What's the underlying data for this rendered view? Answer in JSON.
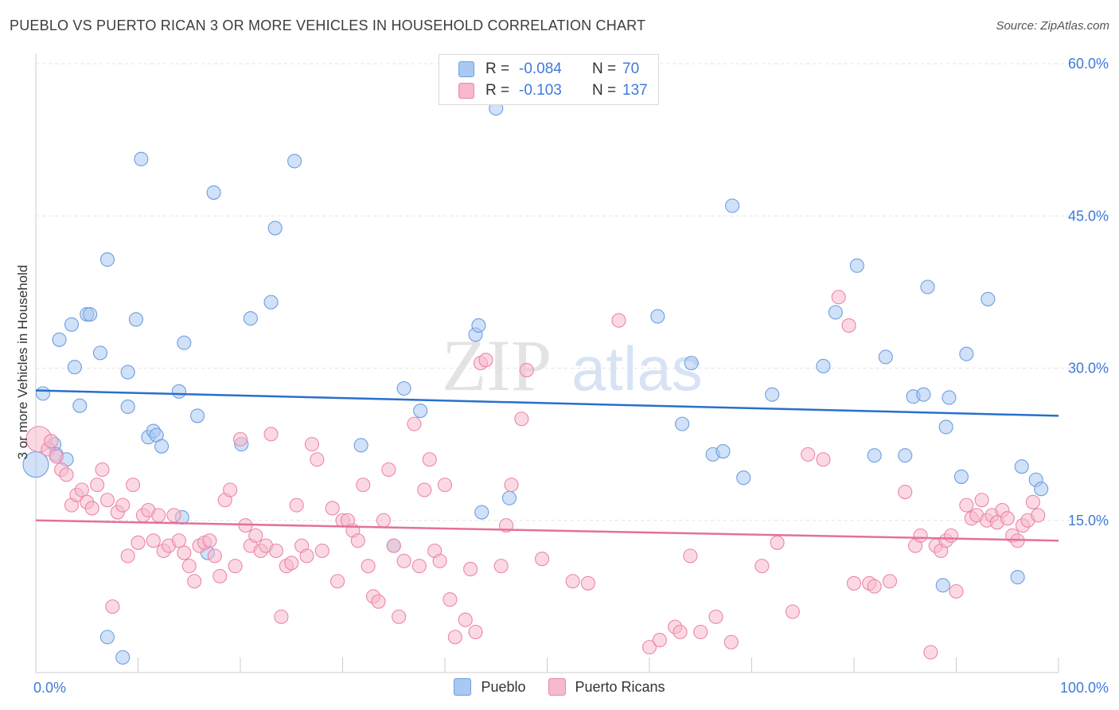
{
  "header": {
    "title": "PUEBLO VS PUERTO RICAN 3 OR MORE VEHICLES IN HOUSEHOLD CORRELATION CHART",
    "source": "Source: ZipAtlas.com"
  },
  "watermark": {
    "zip": "ZIP",
    "atlas": "atlas"
  },
  "legend": {
    "rows": [
      {
        "r_label": "R =",
        "r_value": "-0.084",
        "n_label": "N =",
        "n_value": "70",
        "color": "#a9c8f2",
        "border": "#6e9fe0"
      },
      {
        "r_label": "R =",
        "r_value": "-0.103",
        "n_label": "N =",
        "n_value": "137",
        "color": "#f7b9cc",
        "border": "#ec86a6"
      }
    ]
  },
  "bottom_legend": [
    {
      "label": "Pueblo",
      "color": "#a9c8f2",
      "border": "#6e9fe0"
    },
    {
      "label": "Puerto Ricans",
      "color": "#f7b9cc",
      "border": "#ec86a6"
    }
  ],
  "chart_data": {
    "type": "scatter",
    "xlabel": "",
    "ylabel": "3 or more Vehicles in Household",
    "xlim": [
      0,
      100
    ],
    "ylim": [
      0,
      60
    ],
    "x_tick_labels": [
      "0.0%",
      "100.0%"
    ],
    "y_ticks": [
      15,
      30,
      45,
      60
    ],
    "y_tick_labels": [
      "15.0%",
      "30.0%",
      "45.0%",
      "60.0%"
    ],
    "grid": true,
    "legend_position": "top-center",
    "series": [
      {
        "name": "Pueblo",
        "color": "#6e9fe0",
        "fill": "#a9c8f2",
        "trend": [
          [
            0,
            27.8
          ],
          [
            100,
            25.3
          ]
        ],
        "points": [
          [
            0.7,
            27.5
          ],
          [
            1.8,
            22.5
          ],
          [
            2.0,
            21.5
          ],
          [
            3.0,
            21.0
          ],
          [
            2.3,
            32.8
          ],
          [
            3.5,
            34.3
          ],
          [
            3.8,
            30.1
          ],
          [
            4.3,
            26.3
          ],
          [
            5.0,
            35.3
          ],
          [
            5.3,
            35.3
          ],
          [
            6.3,
            31.5
          ],
          [
            7.0,
            40.7
          ],
          [
            9.0,
            26.2
          ],
          [
            9.0,
            29.6
          ],
          [
            9.8,
            34.8
          ],
          [
            10.3,
            50.6
          ],
          [
            11.0,
            23.2
          ],
          [
            11.5,
            23.8
          ],
          [
            11.8,
            23.4
          ],
          [
            12.3,
            22.3
          ],
          [
            14.0,
            27.7
          ],
          [
            14.3,
            15.3
          ],
          [
            14.5,
            32.5
          ],
          [
            15.8,
            25.3
          ],
          [
            16.8,
            11.8
          ],
          [
            17.4,
            47.3
          ],
          [
            20.1,
            22.5
          ],
          [
            21.0,
            34.9
          ],
          [
            23.0,
            36.5
          ],
          [
            23.4,
            43.8
          ],
          [
            25.3,
            50.4
          ],
          [
            31.8,
            22.4
          ],
          [
            35.0,
            12.5
          ],
          [
            36.0,
            28.0
          ],
          [
            37.6,
            25.8
          ],
          [
            43.0,
            33.3
          ],
          [
            43.3,
            34.2
          ],
          [
            43.6,
            15.8
          ],
          [
            45.0,
            55.6
          ],
          [
            46.3,
            17.2
          ],
          [
            60.8,
            35.1
          ],
          [
            63.2,
            24.5
          ],
          [
            64.1,
            30.5
          ],
          [
            66.2,
            21.5
          ],
          [
            67.2,
            21.8
          ],
          [
            68.1,
            46.0
          ],
          [
            69.2,
            19.2
          ],
          [
            72.0,
            27.4
          ],
          [
            77.0,
            30.2
          ],
          [
            78.2,
            35.5
          ],
          [
            80.3,
            40.1
          ],
          [
            82.0,
            21.4
          ],
          [
            83.1,
            31.1
          ],
          [
            85.0,
            21.4
          ],
          [
            85.8,
            27.2
          ],
          [
            86.8,
            27.4
          ],
          [
            87.2,
            38.0
          ],
          [
            88.7,
            8.6
          ],
          [
            89.0,
            24.2
          ],
          [
            89.3,
            27.1
          ],
          [
            90.5,
            19.3
          ],
          [
            91.0,
            31.4
          ],
          [
            93.1,
            36.8
          ],
          [
            96.0,
            9.4
          ],
          [
            96.4,
            20.3
          ],
          [
            97.8,
            19.0
          ],
          [
            98.3,
            18.1
          ],
          [
            0.0,
            20.5
          ],
          [
            7.0,
            3.5
          ],
          [
            8.5,
            1.5
          ]
        ]
      },
      {
        "name": "Puerto Ricans",
        "color": "#ec86a6",
        "fill": "#f7b9cc",
        "trend": [
          [
            0,
            15.0
          ],
          [
            100,
            13.0
          ]
        ],
        "points": [
          [
            0.3,
            23.0
          ],
          [
            1.2,
            22.0
          ],
          [
            1.5,
            22.8
          ],
          [
            2.0,
            21.3
          ],
          [
            2.5,
            20.0
          ],
          [
            3.0,
            19.5
          ],
          [
            3.5,
            16.5
          ],
          [
            4.0,
            17.5
          ],
          [
            4.5,
            18.0
          ],
          [
            5.0,
            16.8
          ],
          [
            5.5,
            16.2
          ],
          [
            6.0,
            18.5
          ],
          [
            6.5,
            20.0
          ],
          [
            7.0,
            17.0
          ],
          [
            7.5,
            6.5
          ],
          [
            8.0,
            15.8
          ],
          [
            8.5,
            16.5
          ],
          [
            9.0,
            11.5
          ],
          [
            9.5,
            18.5
          ],
          [
            10.0,
            12.8
          ],
          [
            10.5,
            15.5
          ],
          [
            11.0,
            16.0
          ],
          [
            11.5,
            13.0
          ],
          [
            12.0,
            15.5
          ],
          [
            12.5,
            12.0
          ],
          [
            13.0,
            12.5
          ],
          [
            13.5,
            15.5
          ],
          [
            14.0,
            13.0
          ],
          [
            14.5,
            11.8
          ],
          [
            15.0,
            10.5
          ],
          [
            15.5,
            9.0
          ],
          [
            16.0,
            12.5
          ],
          [
            16.5,
            12.8
          ],
          [
            17.0,
            13.0
          ],
          [
            17.5,
            11.5
          ],
          [
            18.0,
            9.5
          ],
          [
            18.5,
            17.0
          ],
          [
            19.0,
            18.0
          ],
          [
            19.5,
            10.5
          ],
          [
            20.0,
            23.0
          ],
          [
            20.5,
            14.5
          ],
          [
            21.0,
            12.5
          ],
          [
            21.5,
            13.5
          ],
          [
            22.0,
            12.0
          ],
          [
            22.5,
            12.5
          ],
          [
            23.0,
            23.5
          ],
          [
            23.5,
            12.0
          ],
          [
            24.0,
            5.5
          ],
          [
            24.5,
            10.5
          ],
          [
            25.0,
            10.8
          ],
          [
            25.5,
            16.5
          ],
          [
            26.0,
            12.5
          ],
          [
            26.5,
            11.5
          ],
          [
            27.0,
            22.5
          ],
          [
            27.5,
            21.0
          ],
          [
            28.0,
            12.0
          ],
          [
            29.0,
            16.2
          ],
          [
            29.5,
            9.0
          ],
          [
            30.0,
            15.0
          ],
          [
            30.5,
            15.0
          ],
          [
            31.0,
            14.0
          ],
          [
            31.5,
            13.0
          ],
          [
            32.0,
            18.5
          ],
          [
            32.5,
            10.5
          ],
          [
            33.0,
            7.5
          ],
          [
            33.5,
            7.0
          ],
          [
            34.0,
            15.0
          ],
          [
            34.5,
            20.0
          ],
          [
            35.0,
            12.5
          ],
          [
            35.5,
            5.5
          ],
          [
            36.0,
            11.0
          ],
          [
            37.0,
            24.5
          ],
          [
            37.5,
            10.5
          ],
          [
            38.0,
            18.0
          ],
          [
            38.5,
            21.0
          ],
          [
            39.0,
            12.0
          ],
          [
            39.5,
            11.0
          ],
          [
            40.0,
            18.5
          ],
          [
            40.5,
            7.2
          ],
          [
            41.0,
            3.5
          ],
          [
            42.0,
            5.2
          ],
          [
            42.5,
            10.2
          ],
          [
            43.0,
            4.0
          ],
          [
            43.5,
            30.5
          ],
          [
            44.0,
            30.8
          ],
          [
            45.5,
            10.5
          ],
          [
            46.0,
            14.5
          ],
          [
            46.5,
            18.5
          ],
          [
            47.5,
            25.0
          ],
          [
            48.0,
            29.8
          ],
          [
            49.5,
            11.2
          ],
          [
            52.5,
            9.0
          ],
          [
            54.0,
            8.8
          ],
          [
            57.0,
            34.7
          ],
          [
            60.0,
            2.5
          ],
          [
            61.0,
            3.2
          ],
          [
            62.5,
            4.5
          ],
          [
            63.0,
            4.0
          ],
          [
            64.0,
            11.5
          ],
          [
            65.0,
            4.0
          ],
          [
            66.5,
            5.5
          ],
          [
            68.0,
            3.0
          ],
          [
            71.0,
            10.5
          ],
          [
            72.5,
            12.8
          ],
          [
            74.0,
            6.0
          ],
          [
            75.5,
            21.5
          ],
          [
            77.0,
            21.0
          ],
          [
            78.5,
            37.0
          ],
          [
            79.5,
            34.2
          ],
          [
            80.0,
            8.8
          ],
          [
            81.5,
            8.8
          ],
          [
            82.0,
            8.5
          ],
          [
            83.5,
            9.0
          ],
          [
            85.0,
            17.8
          ],
          [
            86.0,
            12.5
          ],
          [
            86.5,
            13.5
          ],
          [
            87.5,
            2.0
          ],
          [
            88.0,
            12.5
          ],
          [
            88.5,
            12.0
          ],
          [
            89.0,
            13.0
          ],
          [
            89.5,
            13.5
          ],
          [
            90.0,
            8.0
          ],
          [
            91.0,
            16.5
          ],
          [
            91.5,
            15.2
          ],
          [
            92.0,
            15.5
          ],
          [
            92.5,
            17.0
          ],
          [
            93.0,
            15.0
          ],
          [
            93.5,
            15.5
          ],
          [
            94.0,
            14.8
          ],
          [
            94.5,
            16.0
          ],
          [
            95.0,
            15.2
          ],
          [
            95.5,
            13.5
          ],
          [
            96.0,
            13.0
          ],
          [
            96.5,
            14.5
          ],
          [
            97.0,
            15.0
          ],
          [
            97.5,
            16.8
          ],
          [
            98.0,
            15.5
          ]
        ]
      }
    ]
  }
}
